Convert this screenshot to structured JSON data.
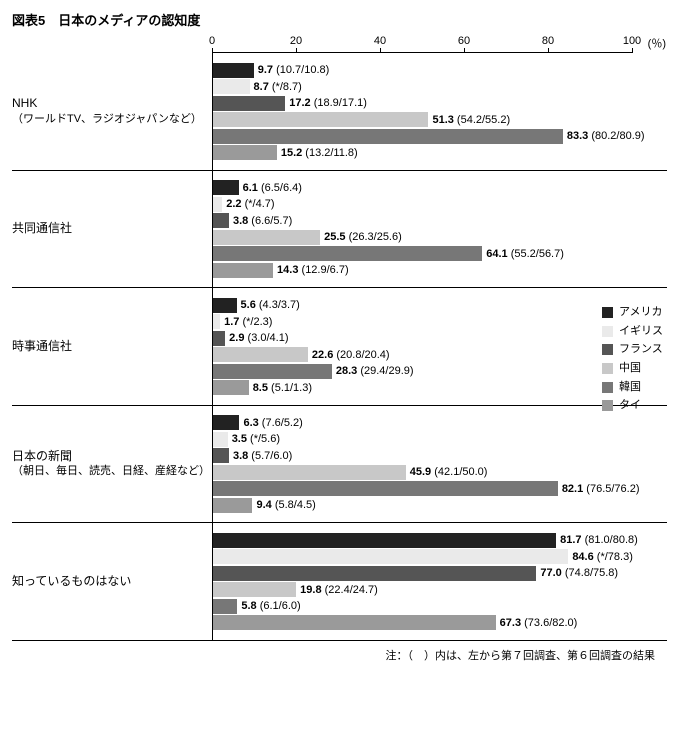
{
  "title": "図表5　日本のメディアの認知度",
  "x_unit": "(％)",
  "x_max": 100,
  "x_ticks": [
    0,
    20,
    40,
    60,
    80,
    100
  ],
  "colors": [
    "#222222",
    "#eaeaea",
    "#555555",
    "#c8c8c8",
    "#777777",
    "#9a9a9a"
  ],
  "legend": [
    "アメリカ",
    "イギリス",
    "フランス",
    "中国",
    "韓国",
    "タイ"
  ],
  "footnote": "注：（　）内は、左から第７回調査、第６回調査の結果",
  "groups": [
    {
      "label": "NHK",
      "sublabel": "（ワールドTV、ラジオジャパンなど）",
      "values": [
        9.7,
        8.7,
        17.2,
        51.3,
        83.3,
        15.2
      ],
      "notes": [
        "(10.7/10.8)",
        "(*/8.7)",
        "(18.9/17.1)",
        "(54.2/55.2)",
        "(80.2/80.9)",
        "(13.2/11.8)"
      ]
    },
    {
      "label": "共同通信社",
      "sublabel": "",
      "values": [
        6.1,
        2.2,
        3.8,
        25.5,
        64.1,
        14.3
      ],
      "notes": [
        "(6.5/6.4)",
        "(*/4.7)",
        "(6.6/5.7)",
        "(26.3/25.6)",
        "(55.2/56.7)",
        "(12.9/6.7)"
      ]
    },
    {
      "label": "時事通信社",
      "sublabel": "",
      "values": [
        5.6,
        1.7,
        2.9,
        22.6,
        28.3,
        8.5
      ],
      "notes": [
        "(4.3/3.7)",
        "(*/2.3)",
        "(3.0/4.1)",
        "(20.8/20.4)",
        "(29.4/29.9)",
        "(5.1/1.3)"
      ]
    },
    {
      "label": "日本の新聞",
      "sublabel": "（朝日、毎日、読売、日経、産経など）",
      "values": [
        6.3,
        3.5,
        3.8,
        45.9,
        82.1,
        9.4
      ],
      "notes": [
        "(7.6/5.2)",
        "(*/5.6)",
        "(5.7/6.0)",
        "(42.1/50.0)",
        "(76.5/76.2)",
        "(5.8/4.5)"
      ]
    },
    {
      "label": "知っているものはない",
      "sublabel": "",
      "values": [
        81.7,
        84.6,
        77.0,
        19.8,
        5.8,
        67.3
      ],
      "notes": [
        "(81.0/80.8)",
        "(*/78.3)",
        "(74.8/75.8)",
        "(22.4/24.7)",
        "(6.1/6.0)",
        "(73.6/82.0)"
      ]
    }
  ]
}
